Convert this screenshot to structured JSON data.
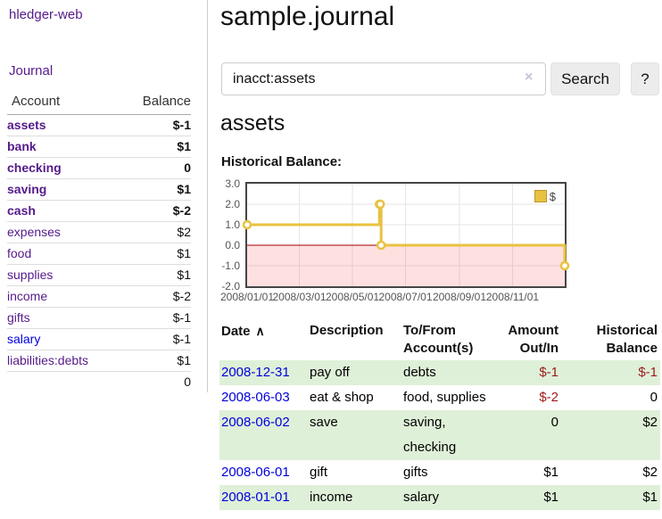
{
  "app": {
    "brand": "hledger-web"
  },
  "colors": {
    "link_purple": "#551a8b",
    "link_blue": "#0000dd",
    "negative_strong": "#8b1414",
    "negative_soft": "#b97c7c",
    "table_negative": "#9d1a1a",
    "row_green": "#dff0d8",
    "series_gold": "#e8c240"
  },
  "sidebar": {
    "nav": {
      "journal": "Journal"
    },
    "table": {
      "headers": {
        "account": "Account",
        "balance": "Balance"
      },
      "rows": [
        {
          "label": "assets",
          "indent": 1,
          "bold": true,
          "link_color": "purple",
          "balance": "$-1",
          "balance_class": "neg-strong"
        },
        {
          "label": "bank",
          "indent": 2,
          "bold": true,
          "link_color": "purple",
          "balance": "$1",
          "balance_class": ""
        },
        {
          "label": "checking",
          "indent": 3,
          "bold": true,
          "link_color": "purple",
          "balance": "0",
          "balance_class": ""
        },
        {
          "label": "saving",
          "indent": 3,
          "bold": true,
          "link_color": "purple",
          "balance": "$1",
          "balance_class": ""
        },
        {
          "label": "cash",
          "indent": 2,
          "bold": true,
          "link_color": "purple",
          "balance": "$-2",
          "balance_class": "neg-strong"
        },
        {
          "label": "expenses",
          "indent": 1,
          "bold": false,
          "link_color": "purple",
          "balance": "$2",
          "balance_class": ""
        },
        {
          "label": "food",
          "indent": 2,
          "bold": false,
          "link_color": "purple",
          "balance": "$1",
          "balance_class": ""
        },
        {
          "label": "supplies",
          "indent": 2,
          "bold": false,
          "link_color": "purple",
          "balance": "$1",
          "balance_class": ""
        },
        {
          "label": "income",
          "indent": 1,
          "bold": false,
          "link_color": "purple",
          "balance": "$-2",
          "balance_class": "neg-soft"
        },
        {
          "label": "gifts",
          "indent": 2,
          "bold": false,
          "link_color": "purple",
          "balance": "$-1",
          "balance_class": "neg-soft"
        },
        {
          "label": "salary",
          "indent": 2,
          "bold": false,
          "link_color": "blue",
          "balance": "$-1",
          "balance_class": "neg-soft"
        },
        {
          "label": "liabilities:debts",
          "indent": 1,
          "bold": false,
          "link_color": "purple",
          "balance": "$1",
          "balance_class": ""
        }
      ],
      "total": "0"
    }
  },
  "main": {
    "title": "sample.journal",
    "search": {
      "value": "inacct:assets",
      "clear_icon": "×",
      "button_label": "Search",
      "help_label": "?"
    },
    "account_heading": "assets"
  },
  "chart_data": {
    "type": "line",
    "step": true,
    "title": "Historical Balance:",
    "legend_position": "top-right",
    "legend": [
      {
        "label": "$",
        "color": "#e8c240"
      }
    ],
    "x_range": [
      "2008-01-01",
      "2008-12-31"
    ],
    "ylim": [
      -2,
      3
    ],
    "grid": true,
    "y_ticks": [
      3,
      2,
      1,
      0,
      -1,
      -2
    ],
    "y_tick_labels": [
      "3.0",
      "2.0",
      "1.0",
      "0.0",
      "-1.0",
      "-2.0"
    ],
    "x_tick_dates": [
      "2008-01-01",
      "2008-03-01",
      "2008-05-01",
      "2008-07-01",
      "2008-09-01",
      "2008-11-01"
    ],
    "x_tick_labels": [
      "2008/01/01",
      "2008/03/01",
      "2008/05/01",
      "2008/07/01",
      "2008/09/01",
      "2008/11/01"
    ],
    "zero_line_color": "#a40000",
    "negative_region_color": "rgba(255,0,0,0.12)",
    "series": [
      {
        "name": "$",
        "color": "#e8c240",
        "points": [
          [
            "2008-01-01",
            1
          ],
          [
            "2008-06-01",
            2
          ],
          [
            "2008-06-02",
            2
          ],
          [
            "2008-06-03",
            0
          ],
          [
            "2008-12-31",
            -1
          ]
        ]
      }
    ]
  },
  "transactions": {
    "headers": [
      {
        "label": "Date",
        "align": "left",
        "sortable": true,
        "sort_icon": "∧"
      },
      {
        "label": "Description",
        "align": "left"
      },
      {
        "label": "To/From Account(s)",
        "align": "left"
      },
      {
        "label": "Amount Out/In",
        "align": "right"
      },
      {
        "label": "Historical Balance",
        "align": "right"
      }
    ],
    "rows": [
      {
        "date": "2008-12-31",
        "description": "pay off",
        "accounts": "debts",
        "amount": "$-1",
        "amount_negative": true,
        "balance": "$-1",
        "balance_negative": true
      },
      {
        "date": "2008-06-03",
        "description": "eat & shop",
        "accounts": "food, supplies",
        "amount": "$-2",
        "amount_negative": true,
        "balance": "0",
        "balance_negative": false
      },
      {
        "date": "2008-06-02",
        "description": "save",
        "accounts": "saving, checking",
        "amount": "0",
        "amount_negative": false,
        "balance": "$2",
        "balance_negative": false
      },
      {
        "date": "2008-06-01",
        "description": "gift",
        "accounts": "gifts",
        "amount": "$1",
        "amount_negative": false,
        "balance": "$2",
        "balance_negative": false
      },
      {
        "date": "2008-01-01",
        "description": "income",
        "accounts": "salary",
        "amount": "$1",
        "amount_negative": false,
        "balance": "$1",
        "balance_negative": false
      }
    ]
  }
}
